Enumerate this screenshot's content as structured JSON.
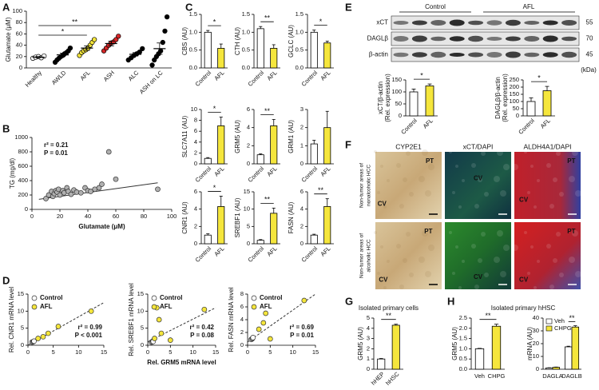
{
  "figure": {
    "panel_labels": [
      "A",
      "B",
      "C",
      "D",
      "E",
      "F",
      "G",
      "H"
    ],
    "blot": {
      "groups": [
        "Control",
        "AFL"
      ],
      "rows": [
        "xCT",
        "DAGLβ",
        "β-actin"
      ],
      "sizes": [
        55,
        70,
        45
      ],
      "unit": "(kDa)"
    },
    "histology": {
      "columns": [
        "CYP2E1",
        "xCT/DAPI",
        "ALDH4A1/DAPI"
      ],
      "rows": [
        [
          "Non-tumor areas of",
          "nonalcoholic HCC"
        ],
        [
          "Non-tumor areas of",
          "alcoholic HCC"
        ]
      ],
      "region_labels": [
        "PT",
        "CV"
      ]
    }
  },
  "chart_data": [
    {
      "type": "dot",
      "ylabel": "Glutamate (μM)",
      "categories": [
        "Healthy",
        "AWLD",
        "AFL",
        "ASH",
        "ALC",
        "ASH on LC"
      ],
      "colors": [
        "#ffffff",
        "#000000",
        "#f5e63c",
        "#d62728",
        "#000000",
        "#000000"
      ],
      "values": [
        [
          17,
          19,
          20,
          18,
          21
        ],
        [
          10,
          14,
          17,
          20,
          22,
          25,
          27,
          30,
          35
        ],
        [
          22,
          27,
          30,
          32,
          35,
          40,
          45,
          50
        ],
        [
          30,
          35,
          40,
          44,
          46,
          50,
          56
        ],
        [
          14,
          18,
          22,
          25,
          28,
          34
        ],
        [
          5,
          14,
          20,
          25,
          30,
          45,
          65,
          90
        ]
      ],
      "means": [
        19,
        23,
        35,
        43,
        24,
        34
      ],
      "errors": [
        1,
        3,
        4,
        4,
        3,
        10
      ],
      "ylim": [
        0,
        100
      ],
      "yticks": [
        0,
        20,
        40,
        60,
        80,
        100
      ],
      "annotations": [
        {
          "text": "**",
          "from": "Healthy",
          "to": "ASH"
        },
        {
          "text": "*",
          "from": "Healthy",
          "to": "AFL"
        }
      ]
    },
    {
      "type": "scatter",
      "xlabel": "Glutamate (μM)",
      "ylabel": "TG (mg/dl)",
      "xlim": [
        0,
        100
      ],
      "xticks": [
        0,
        20,
        40,
        60,
        80,
        100
      ],
      "ylim": [
        0,
        1000
      ],
      "yticks": [
        0,
        200,
        400,
        600,
        800,
        1000
      ],
      "series": [
        {
          "color": "#b0b0b0",
          "x": [
            10,
            12,
            14,
            15,
            16,
            17,
            18,
            19,
            20,
            22,
            23,
            25,
            26,
            28,
            30,
            32,
            35,
            38,
            40,
            42,
            45,
            48,
            50,
            55,
            60,
            90
          ],
          "values": [
            150,
            200,
            250,
            180,
            220,
            260,
            240,
            280,
            200,
            260,
            230,
            300,
            250,
            210,
            270,
            240,
            230,
            300,
            260,
            250,
            280,
            300,
            350,
            800,
            420,
            280
          ]
        }
      ],
      "fit": {
        "x": [
          5,
          90
        ],
        "values": [
          140,
          370
        ]
      },
      "annotations": [
        "r² = 0.21",
        "P = 0.01"
      ]
    },
    {
      "type": "bar",
      "ylabel": "CBS (AU)",
      "categories": [
        "Control",
        "AFL"
      ],
      "colors": [
        "#ffffff",
        "#f5e63c"
      ],
      "values": [
        1.0,
        0.55
      ],
      "errors": [
        0.05,
        0.12
      ],
      "ylim": [
        0,
        1.5
      ],
      "yticks": [
        {
          "value": 0,
          "label": "0.0"
        },
        0.5,
        {
          "value": 1,
          "label": "1.0"
        },
        1.5
      ],
      "significance": "*"
    },
    {
      "type": "bar",
      "ylabel": "CTH (AU)",
      "categories": [
        "Control",
        "AFL"
      ],
      "colors": [
        "#ffffff",
        "#f5e63c"
      ],
      "values": [
        1.1,
        0.55
      ],
      "errors": [
        0.06,
        0.1
      ],
      "ylim": [
        0,
        1.5
      ],
      "yticks": [
        {
          "value": 0,
          "label": "0.0"
        },
        0.5,
        {
          "value": 1,
          "label": "1.0"
        },
        1.5
      ],
      "significance": "**"
    },
    {
      "type": "bar",
      "ylabel": "GCLC (AU)",
      "categories": [
        "Control",
        "AFL"
      ],
      "colors": [
        "#ffffff",
        "#f5e63c"
      ],
      "values": [
        1.0,
        0.7
      ],
      "errors": [
        0.06,
        0.05
      ],
      "ylim": [
        0,
        1.5
      ],
      "yticks": [
        {
          "value": 0,
          "label": "0.0"
        },
        0.5,
        {
          "value": 1,
          "label": "1.0"
        },
        1.5
      ],
      "significance": "*"
    },
    {
      "type": "bar",
      "ylabel": "SLC7A11 (AU)",
      "categories": [
        "Control",
        "AFL"
      ],
      "colors": [
        "#ffffff",
        "#f5e63c"
      ],
      "values": [
        1,
        7
      ],
      "errors": [
        0.15,
        1.6
      ],
      "ylim": [
        0,
        10
      ],
      "yticks": [
        0,
        2,
        4,
        6,
        8,
        10
      ],
      "significance": "*"
    },
    {
      "type": "bar",
      "ylabel": "GRM5 (AU)",
      "categories": [
        "Control",
        "AFL"
      ],
      "colors": [
        "#ffffff",
        "#f5e63c"
      ],
      "values": [
        1,
        4.2
      ],
      "errors": [
        0.1,
        0.7
      ],
      "ylim": [
        0,
        6
      ],
      "yticks": [
        0,
        2,
        4,
        6
      ],
      "significance": "**"
    },
    {
      "type": "bar",
      "ylabel": "GRM1 (AU)",
      "categories": [
        "Control",
        "AFL"
      ],
      "colors": [
        "#ffffff",
        "#f5e63c"
      ],
      "values": [
        1.1,
        2
      ],
      "errors": [
        0.2,
        0.9
      ],
      "ylim": [
        0,
        3
      ],
      "yticks": [
        0,
        1,
        2,
        3
      ]
    },
    {
      "type": "bar",
      "ylabel": "CNR1 (AU)",
      "categories": [
        "Control",
        "AFL"
      ],
      "colors": [
        "#ffffff",
        "#f5e63c"
      ],
      "values": [
        1,
        4.3
      ],
      "errors": [
        0.15,
        1.2
      ],
      "ylim": [
        0,
        6
      ],
      "yticks": [
        0,
        2,
        4,
        6
      ],
      "significance": "*"
    },
    {
      "type": "bar",
      "ylabel": "SREBF1 (AU)",
      "categories": [
        "Control",
        "AFL"
      ],
      "colors": [
        "#ffffff",
        "#f5e63c"
      ],
      "values": [
        1,
        8.8
      ],
      "errors": [
        0.2,
        1.5
      ],
      "ylim": [
        0,
        15
      ],
      "yticks": [
        0,
        5,
        10,
        15
      ],
      "significance": "**"
    },
    {
      "type": "bar",
      "ylabel": "FASN (AU)",
      "categories": [
        "Control",
        "AFL"
      ],
      "colors": [
        "#ffffff",
        "#f5e63c"
      ],
      "values": [
        1,
        4.3
      ],
      "errors": [
        0.1,
        0.9
      ],
      "ylim": [
        0,
        6
      ],
      "yticks": [
        0,
        2,
        4,
        6
      ],
      "significance": "**"
    },
    {
      "type": "scatter",
      "ylabel": "Rel. CNR1 mRNA level",
      "xlim": [
        0,
        15
      ],
      "xticks": [
        0,
        5,
        10,
        15
      ],
      "ylim": [
        0,
        15
      ],
      "yticks": [
        0,
        5,
        10,
        15
      ],
      "series": [
        {
          "name": "Control",
          "color": "#ffffff",
          "x": [
            0.8,
            1,
            1.1,
            1.2
          ],
          "values": [
            0.9,
            1,
            1.1,
            1.2
          ]
        },
        {
          "name": "AFL",
          "color": "#f5e63c",
          "x": [
            2,
            3,
            4,
            6,
            12.5
          ],
          "values": [
            2,
            2.5,
            3.5,
            5.5,
            10
          ]
        }
      ],
      "fit": {
        "x": [
          0,
          15
        ],
        "values": [
          0,
          12.5
        ]
      },
      "fit_dashed": true,
      "annotations": [
        "r² = 0.99",
        "P < 0.001"
      ]
    },
    {
      "type": "scatter",
      "xlabel": "Rel. GRM5 mRNA level",
      "ylabel": "Rel. SREBF1 mRNA level",
      "xlim": [
        0,
        15
      ],
      "xticks": [
        0,
        5,
        10,
        15
      ],
      "ylim": [
        0,
        15
      ],
      "yticks": [
        0,
        5,
        10,
        15
      ],
      "series": [
        {
          "name": "Control",
          "color": "#ffffff",
          "x": [
            0.8,
            1,
            1.1,
            1.2
          ],
          "values": [
            0.9,
            1,
            1.2,
            1.1
          ]
        },
        {
          "name": "AFL",
          "color": "#f5e63c",
          "x": [
            1.5,
            2,
            2.5,
            3,
            5,
            12.5
          ],
          "values": [
            2,
            11,
            7.5,
            3.5,
            1.5,
            10.5
          ]
        }
      ],
      "fit": {
        "x": [
          0,
          15
        ],
        "values": [
          1,
          11
        ]
      },
      "fit_dashed": true,
      "annotations": [
        "r² = 0.42",
        "P = 0.08"
      ]
    },
    {
      "type": "scatter",
      "ylabel": "Rel. FASN mRNA level",
      "xlim": [
        0,
        15
      ],
      "xticks": [
        0,
        5,
        10,
        15
      ],
      "ylim": [
        0,
        8
      ],
      "yticks": [
        0,
        2,
        4,
        6,
        8
      ],
      "series": [
        {
          "name": "Control",
          "color": "#ffffff",
          "x": [
            0.8,
            1,
            1.1,
            1.2
          ],
          "values": [
            0.9,
            1,
            1.1,
            1.2
          ]
        },
        {
          "name": "AFL",
          "color": "#f5e63c",
          "x": [
            2.5,
            3.5,
            4,
            5,
            12.5
          ],
          "values": [
            2.5,
            3.5,
            5,
            1,
            7
          ]
        }
      ],
      "fit": {
        "x": [
          0,
          15
        ],
        "values": [
          0.5,
          8
        ]
      },
      "fit_dashed": true,
      "annotations": [
        "r² = 0.69",
        "P = 0.01"
      ]
    },
    {
      "type": "bar",
      "ylabel": [
        "xCT/β-actin",
        "(Rel. expression)"
      ],
      "categories": [
        "Control",
        "AFL"
      ],
      "colors": [
        "#ffffff",
        "#f5e63c"
      ],
      "values": [
        100,
        125
      ],
      "errors": [
        12,
        8
      ],
      "ylim": [
        0,
        150
      ],
      "yticks": [
        0,
        50,
        100,
        150
      ],
      "significance": "*"
    },
    {
      "type": "bar",
      "ylabel": [
        "DAGLβ/β-actin",
        "(Rel. expression)"
      ],
      "categories": [
        "Control",
        "AFL"
      ],
      "colors": [
        "#ffffff",
        "#f5e63c"
      ],
      "values": [
        100,
        175
      ],
      "errors": [
        25,
        30
      ],
      "ylim": [
        0,
        250
      ],
      "yticks": [
        0,
        50,
        100,
        150,
        200,
        250
      ],
      "significance": "*"
    },
    {
      "type": "bar",
      "title": "Isolated primary cells",
      "ylabel": "GRM5 (AU)",
      "categories": [
        "hHEP",
        "hHSC"
      ],
      "colors": [
        "#ffffff",
        "#f5e63c"
      ],
      "values": [
        1,
        4.3
      ],
      "errors": [
        0.05,
        0.1
      ],
      "ylim": [
        0,
        5
      ],
      "yticks": [
        0,
        1,
        2,
        3,
        4,
        5
      ],
      "significance": "**"
    },
    {
      "type": "bar",
      "title": "Isolated primary hHSC",
      "ylabel": "GRM5 (AU)",
      "categories": [
        "Veh",
        "CHPG"
      ],
      "colors": [
        "#ffffff",
        "#f5e63c"
      ],
      "values": [
        1,
        2.1
      ],
      "errors": [
        0.02,
        0.1
      ],
      "ylim": [
        0,
        2.5
      ],
      "yticks": [
        {
          "value": 0,
          "label": "0.0"
        },
        0.5,
        {
          "value": 1,
          "label": "1.0"
        },
        1.5,
        {
          "value": 2,
          "label": "2.0"
        },
        2.5
      ],
      "significance": "**"
    },
    {
      "type": "bar",
      "ylabel": "mRNA (AU)",
      "categories": [
        "DAGLA",
        "DAGLB"
      ],
      "series": [
        {
          "name": "Veh",
          "color": "#ffffff",
          "values": [
            1,
            17.5
          ],
          "errors": [
            0.2,
            0.5
          ]
        },
        {
          "name": "CHPG",
          "color": "#f5e63c",
          "values": [
            1.5,
            33
          ],
          "errors": [
            0.2,
            1
          ]
        }
      ],
      "ylim": [
        0,
        40
      ],
      "yticks": [
        0,
        10,
        20,
        30,
        40
      ],
      "significance": [
        null,
        "**"
      ],
      "legend": "upper left"
    }
  ]
}
